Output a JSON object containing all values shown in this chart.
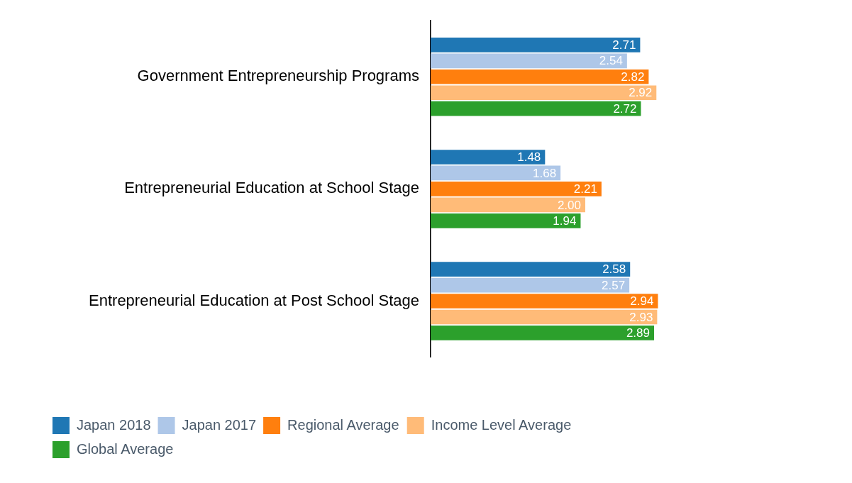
{
  "chart_data": {
    "type": "bar",
    "orientation": "horizontal",
    "categories": [
      "Government Entrepreneurship Programs",
      "Entrepreneurial Education at School Stage",
      "Entrepreneurial Education at Post School Stage"
    ],
    "series": [
      {
        "name": "Japan 2018",
        "color": "#1f77b4",
        "values": [
          2.71,
          1.48,
          2.58
        ],
        "value_labels": [
          "2.71",
          "1.48",
          "2.58"
        ]
      },
      {
        "name": "Japan 2017",
        "color": "#aec7e8",
        "values": [
          2.54,
          1.68,
          2.57
        ],
        "value_labels": [
          "2.54",
          "1.68",
          "2.57"
        ]
      },
      {
        "name": "Regional Average",
        "color": "#ff7f0e",
        "values": [
          2.82,
          2.21,
          2.94
        ],
        "value_labels": [
          "2.82",
          "2.21",
          "2.94"
        ]
      },
      {
        "name": "Income Level Average",
        "color": "#ffbb78",
        "values": [
          2.92,
          2.0,
          2.93
        ],
        "value_labels": [
          "2.92",
          "2.00",
          "2.93"
        ]
      },
      {
        "name": "Global Average",
        "color": "#2ca02c",
        "values": [
          2.72,
          1.94,
          2.89
        ],
        "value_labels": [
          "2.72",
          "1.94",
          "2.89"
        ]
      }
    ],
    "tick_labels": "y",
    "legend": "bottom left"
  }
}
